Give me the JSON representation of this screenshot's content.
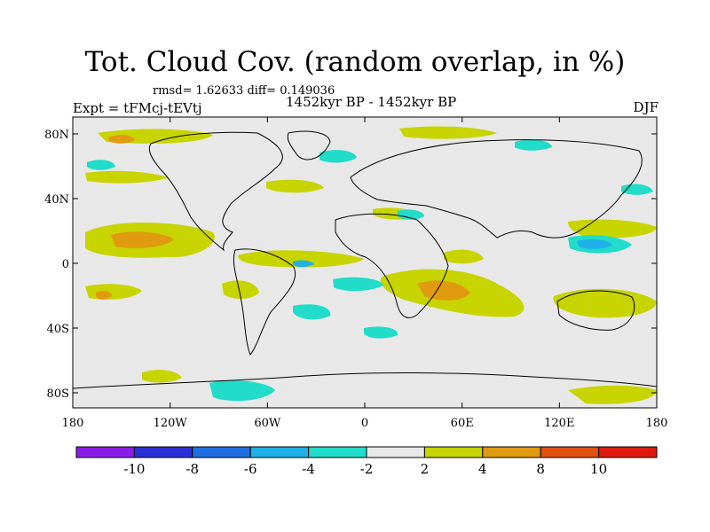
{
  "header": {
    "title": "Tot. Cloud Cov. (random overlap, in %)",
    "stats": "rmsd= 1.62633  diff= 0.149036",
    "experiment": "Expt = tFMcj-tEVtj",
    "period": "1452kyr BP - 1452kyr BP",
    "season": "DJF"
  },
  "axes": {
    "lat_ticks": [
      "80N",
      "40N",
      "0",
      "40S",
      "80S"
    ],
    "lon_ticks": [
      "180",
      "120W",
      "60W",
      "0",
      "60E",
      "120E",
      "180"
    ]
  },
  "colorbar": {
    "labels": [
      "-10",
      "-8",
      "-6",
      "-4",
      "-2",
      "2",
      "4",
      "8",
      "10"
    ],
    "colors": [
      "#8a1ee8",
      "#2c2fd8",
      "#1f6fe0",
      "#1fb0e8",
      "#20dcc8",
      "#e8e8e8",
      "#c8d400",
      "#e09a10",
      "#e05010",
      "#e01a10"
    ]
  },
  "map": {
    "background": "#e8e8e8"
  }
}
